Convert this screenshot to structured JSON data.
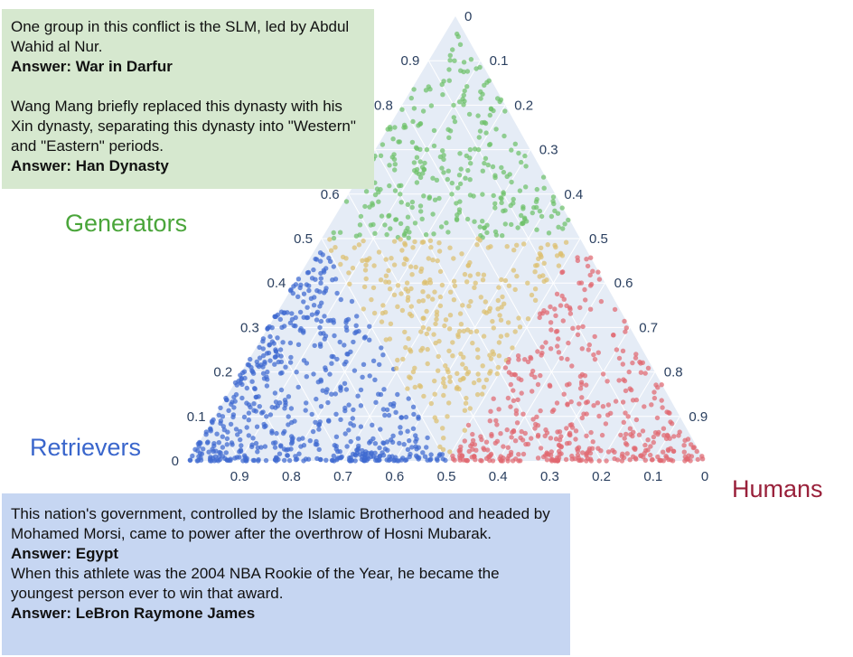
{
  "top_box": {
    "q1": "One group in this conflict is the SLM, led by Abdul Wahid al Nur.",
    "a1": "Answer: War in Darfur",
    "q2": "Wang Mang briefly replaced this dynasty with his Xin dynasty, separating this dynasty into \"Western\" and \"Eastern\" periods.",
    "a2": "Answer: Han Dynasty"
  },
  "bottom_box": {
    "q1": "This nation's government, controlled by the Islamic Brotherhood and headed by Mohamed Morsi, came to power after the overthrow of Hosni Mubarak.",
    "a1": "Answer: Egypt",
    "q2": "When this athlete was the 2004 NBA Rookie of the Year, he became the youngest person ever to win that award.",
    "a2": "Answer: LeBron Raymone James"
  },
  "chart_data": {
    "type": "scatter",
    "subtype": "ternary",
    "vertex_labels": {
      "top": "Generators",
      "left": "Retrievers",
      "right": "Humans"
    },
    "axis_ticks": [
      0,
      0.1,
      0.2,
      0.3,
      0.4,
      0.5,
      0.6,
      0.7,
      0.8,
      0.9
    ],
    "axis_tick_labels": [
      "0",
      "0.1",
      "0.2",
      "0.3",
      "0.4",
      "0.5",
      "0.6",
      "0.7",
      "0.8",
      "0.9"
    ],
    "grid": true,
    "background_color": "#e5ecf6",
    "series": [
      {
        "color": "#6dc06a",
        "region": "Generators share > 0.5",
        "approx_points": 150,
        "sample_points": [
          [
            0.9,
            0.05,
            0.05
          ],
          [
            0.8,
            0.1,
            0.1
          ],
          [
            0.7,
            0.2,
            0.1
          ],
          [
            0.7,
            0.1,
            0.2
          ],
          [
            0.6,
            0.3,
            0.1
          ],
          [
            0.6,
            0.1,
            0.3
          ],
          [
            0.6,
            0.2,
            0.2
          ],
          [
            0.55,
            0.4,
            0.05
          ],
          [
            0.55,
            0.05,
            0.4
          ]
        ]
      },
      {
        "color": "#dcbf6f",
        "region": "no share > 0.5",
        "approx_points": 230,
        "sample_points": [
          [
            0.45,
            0.3,
            0.25
          ],
          [
            0.4,
            0.35,
            0.25
          ],
          [
            0.35,
            0.3,
            0.35
          ],
          [
            0.3,
            0.4,
            0.3
          ],
          [
            0.25,
            0.45,
            0.3
          ],
          [
            0.2,
            0.4,
            0.4
          ],
          [
            0.15,
            0.45,
            0.4
          ],
          [
            0.1,
            0.45,
            0.45
          ],
          [
            0.4,
            0.15,
            0.45
          ]
        ]
      },
      {
        "color": "#3f6ad0",
        "region": "Retrievers share > 0.5",
        "approx_points": 620,
        "sample_points": [
          [
            0.4,
            0.55,
            0.05
          ],
          [
            0.3,
            0.6,
            0.1
          ],
          [
            0.2,
            0.75,
            0.05
          ],
          [
            0.1,
            0.8,
            0.1
          ],
          [
            0.05,
            0.9,
            0.05
          ],
          [
            0.02,
            0.95,
            0.03
          ],
          [
            0.01,
            0.6,
            0.39
          ],
          [
            0.15,
            0.65,
            0.2
          ],
          [
            0.25,
            0.7,
            0.05
          ]
        ]
      },
      {
        "color": "#e06870",
        "region": "Humans share > 0.5",
        "approx_points": 420,
        "sample_points": [
          [
            0.4,
            0.05,
            0.55
          ],
          [
            0.3,
            0.1,
            0.6
          ],
          [
            0.2,
            0.05,
            0.75
          ],
          [
            0.1,
            0.1,
            0.8
          ],
          [
            0.05,
            0.05,
            0.9
          ],
          [
            0.02,
            0.03,
            0.95
          ],
          [
            0.01,
            0.39,
            0.6
          ],
          [
            0.15,
            0.2,
            0.65
          ],
          [
            0.25,
            0.05,
            0.7
          ]
        ]
      }
    ]
  }
}
